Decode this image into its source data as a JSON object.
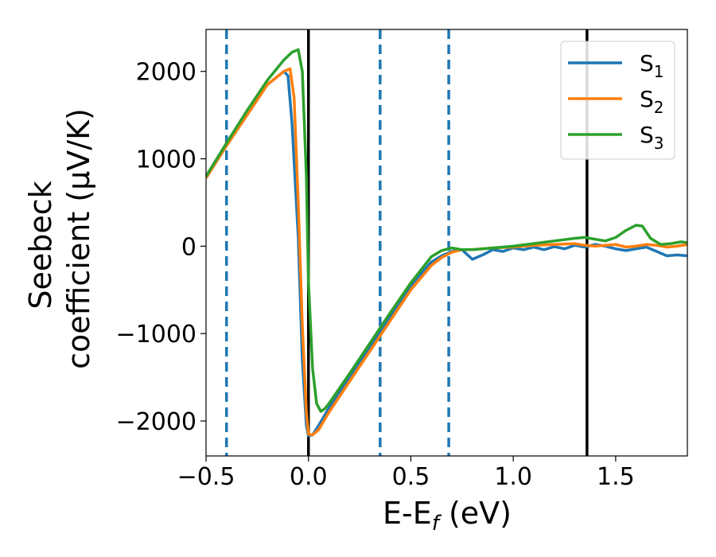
{
  "chart_data": {
    "type": "line",
    "xlabel": "E-E",
    "xlabel_sub": "f",
    "xlabel_unit": " (eV)",
    "ylabel_line1": "Seebeck",
    "ylabel_line2": "coefficient  (μV/K)",
    "xlim": [
      -0.5,
      1.85
    ],
    "ylim": [
      -2400,
      2480
    ],
    "x_ticks": [
      -0.5,
      0.0,
      0.5,
      1.0,
      1.5
    ],
    "x_tick_labels": [
      "−0.5",
      "0.0",
      "0.5",
      "1.0",
      "1.5"
    ],
    "y_ticks": [
      -2000,
      -1000,
      0,
      1000,
      2000
    ],
    "y_tick_labels": [
      "−2000",
      "−1000",
      "0",
      "1000",
      "2000"
    ],
    "grid": false,
    "legend_position": "top-right",
    "vlines_dashed": [
      -0.4,
      0.35,
      0.685
    ],
    "vlines_solid": [
      0.0,
      1.36
    ],
    "vline_dashed_color": "#1f77b4",
    "vline_solid_color": "#000000",
    "series": [
      {
        "name": "S",
        "sub": "1",
        "color": "#1f77b4",
        "x": [
          -0.5,
          -0.4,
          -0.3,
          -0.2,
          -0.12,
          -0.1,
          -0.08,
          -0.05,
          -0.03,
          -0.01,
          0.0,
          0.02,
          0.05,
          0.1,
          0.2,
          0.3,
          0.4,
          0.5,
          0.6,
          0.65,
          0.7,
          0.75,
          0.8,
          0.85,
          0.9,
          0.95,
          1.0,
          1.05,
          1.1,
          1.15,
          1.2,
          1.25,
          1.3,
          1.35,
          1.4,
          1.45,
          1.5,
          1.55,
          1.6,
          1.65,
          1.7,
          1.75,
          1.8,
          1.85
        ],
        "y": [
          780,
          1150,
          1500,
          1850,
          2000,
          1950,
          1400,
          100,
          -1300,
          -2050,
          -2170,
          -2160,
          -2050,
          -1850,
          -1500,
          -1150,
          -800,
          -450,
          -180,
          -110,
          -60,
          -40,
          -150,
          -100,
          -40,
          -60,
          -20,
          -40,
          -10,
          -40,
          -5,
          -30,
          10,
          -10,
          20,
          0,
          -30,
          -50,
          -30,
          -10,
          -60,
          -110,
          -100,
          -110
        ]
      },
      {
        "name": "S",
        "sub": "2",
        "color": "#ff7f0e",
        "x": [
          -0.5,
          -0.4,
          -0.3,
          -0.2,
          -0.12,
          -0.09,
          -0.07,
          -0.05,
          -0.03,
          -0.01,
          0.0,
          0.02,
          0.05,
          0.1,
          0.2,
          0.3,
          0.4,
          0.5,
          0.6,
          0.65,
          0.7,
          0.75,
          0.8,
          0.9,
          1.0,
          1.1,
          1.2,
          1.3,
          1.35,
          1.4,
          1.45,
          1.5,
          1.55,
          1.6,
          1.65,
          1.7,
          1.75,
          1.8,
          1.85
        ],
        "y": [
          780,
          1150,
          1500,
          1850,
          2000,
          2030,
          1700,
          500,
          -900,
          -1900,
          -2150,
          -2160,
          -2100,
          -1900,
          -1550,
          -1200,
          -850,
          -500,
          -220,
          -130,
          -70,
          -40,
          -40,
          -20,
          -10,
          10,
          20,
          30,
          10,
          0,
          10,
          20,
          -10,
          0,
          20,
          10,
          -10,
          0,
          20
        ]
      },
      {
        "name": "S",
        "sub": "3",
        "color": "#2ca02c",
        "x": [
          -0.5,
          -0.4,
          -0.3,
          -0.2,
          -0.12,
          -0.08,
          -0.05,
          -0.03,
          -0.01,
          0.0,
          0.02,
          0.04,
          0.06,
          0.08,
          0.1,
          0.2,
          0.3,
          0.4,
          0.5,
          0.6,
          0.65,
          0.7,
          0.75,
          0.8,
          0.9,
          1.0,
          1.1,
          1.2,
          1.3,
          1.35,
          1.4,
          1.45,
          1.5,
          1.55,
          1.6,
          1.63,
          1.67,
          1.72,
          1.77,
          1.82,
          1.85
        ],
        "y": [
          800,
          1180,
          1550,
          1900,
          2130,
          2220,
          2250,
          2000,
          800,
          -400,
          -1400,
          -1800,
          -1890,
          -1860,
          -1800,
          -1460,
          -1110,
          -760,
          -420,
          -120,
          -50,
          -20,
          -40,
          -40,
          -20,
          0,
          30,
          60,
          90,
          100,
          80,
          60,
          100,
          180,
          240,
          230,
          90,
          20,
          30,
          50,
          40
        ]
      }
    ]
  }
}
